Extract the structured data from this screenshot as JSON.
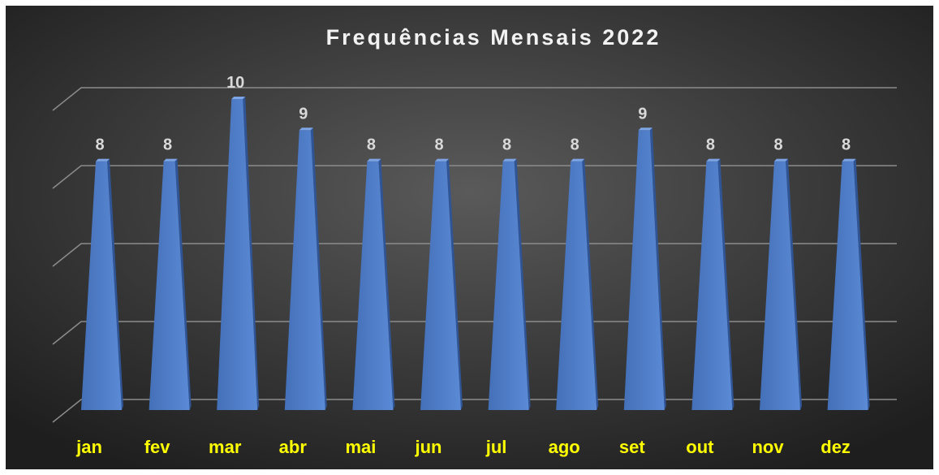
{
  "chart_data": {
    "type": "bar",
    "title": "Frequências Mensais 2022",
    "categories": [
      "jan",
      "fev",
      "mar",
      "abr",
      "mai",
      "jun",
      "jul",
      "ago",
      "set",
      "out",
      "nov",
      "dez"
    ],
    "values": [
      8,
      8,
      10,
      9,
      8,
      8,
      8,
      8,
      9,
      8,
      8,
      8
    ],
    "color": "#4f7fc9",
    "ylim": [
      0,
      10
    ],
    "yticks": [
      0,
      2.5,
      5,
      7.5,
      10
    ],
    "grid": true
  }
}
